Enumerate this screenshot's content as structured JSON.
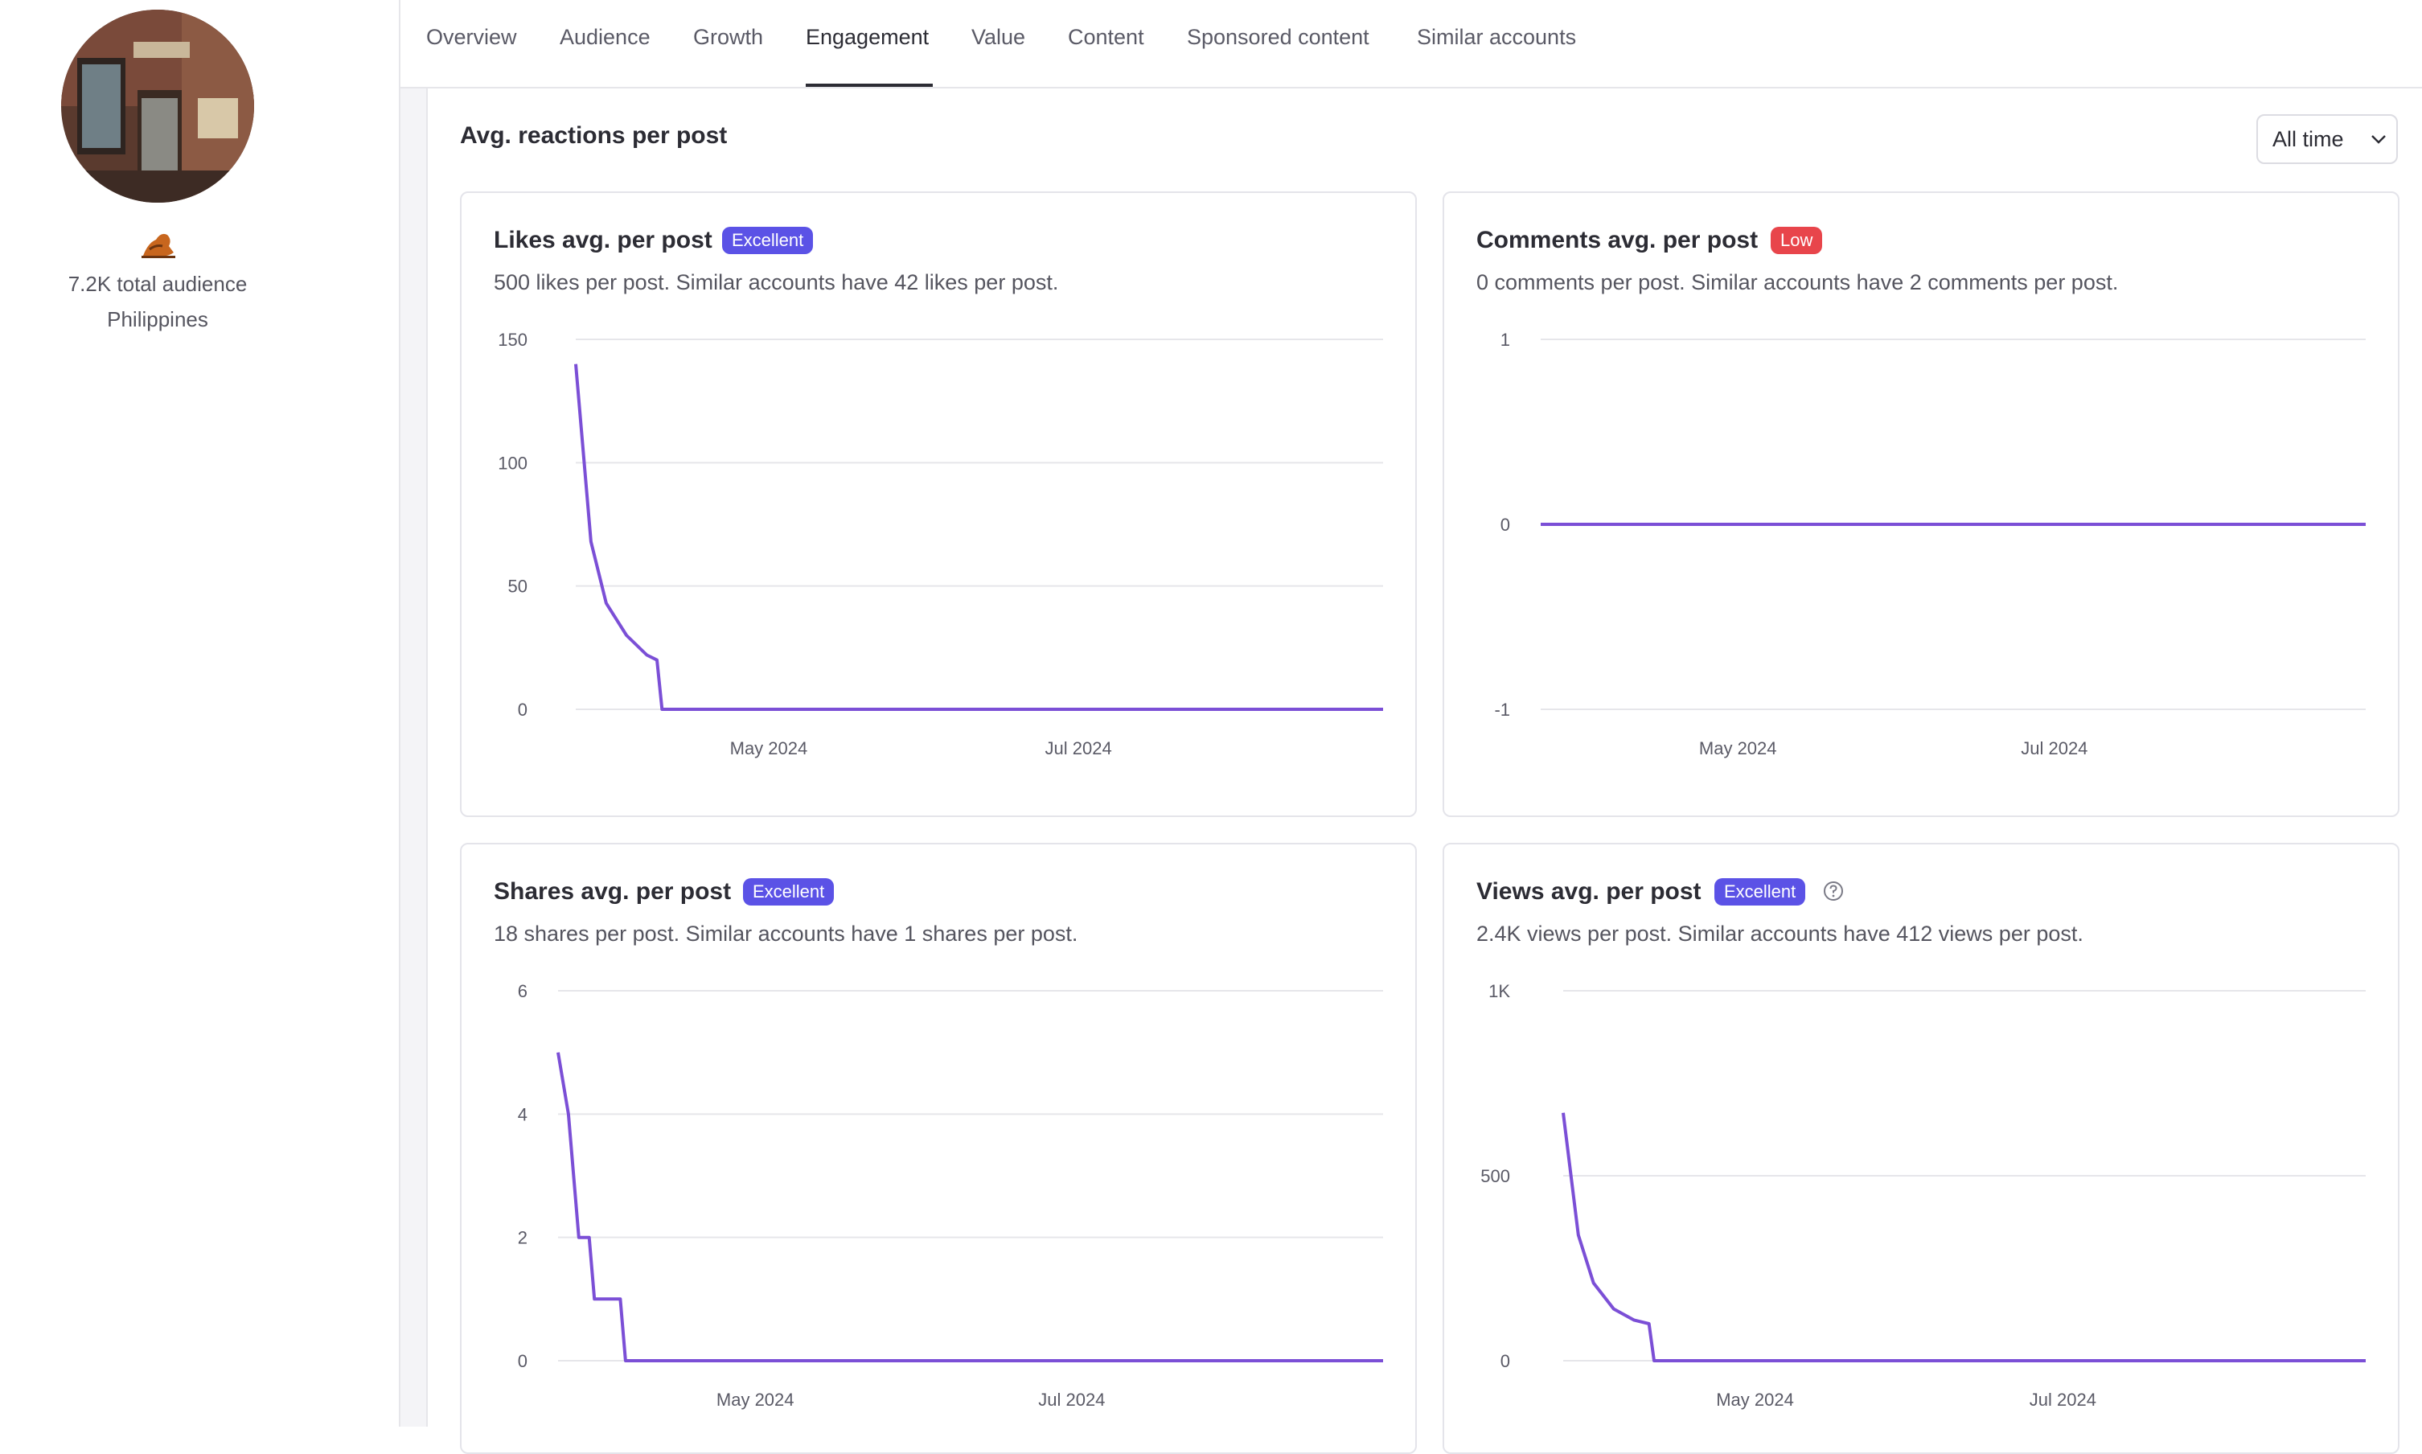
{
  "profile": {
    "audience": "7.2K total audience",
    "location": "Philippines",
    "platform_icon": "hand-icon"
  },
  "tabs": [
    "Overview",
    "Audience",
    "Growth",
    "Engagement",
    "Value",
    "Content",
    "Sponsored content",
    "Similar accounts"
  ],
  "active_tab": "Engagement",
  "section": {
    "title": "Avg. reactions per post",
    "range_select": "All time"
  },
  "colors": {
    "line": "#7b4fd6",
    "excellent": "#5b52e6",
    "low": "#e8454b",
    "grid": "#e6e6ea"
  },
  "cards": [
    {
      "title": "Likes avg. per post",
      "badge": "Excellent",
      "badge_kind": "excellent",
      "subtitle": "500 likes per post. Similar accounts have 42 likes per post."
    },
    {
      "title": "Comments avg. per post",
      "badge": "Low",
      "badge_kind": "low",
      "subtitle": "0 comments per post. Similar accounts have 2 comments per post."
    },
    {
      "title": "Shares avg. per post",
      "badge": "Excellent",
      "badge_kind": "excellent",
      "subtitle": "18 shares per post. Similar accounts have 1 shares per post."
    },
    {
      "title": "Views avg. per post",
      "badge": "Excellent",
      "badge_kind": "excellent",
      "subtitle": "2.4K views per post. Similar accounts have 412 views per post.",
      "help_icon": "question-circle-icon"
    }
  ],
  "chart_data": [
    {
      "type": "line",
      "title": "Likes avg. per post",
      "x": [
        "2024-03-24",
        "2024-03-27",
        "2024-03-30",
        "2024-04-03",
        "2024-04-07",
        "2024-04-09",
        "2024-04-10",
        "2024-08-30"
      ],
      "y": [
        140,
        68,
        43,
        30,
        22,
        20,
        0,
        0
      ],
      "yticks": [
        "150",
        "100",
        "50",
        "0"
      ],
      "ylim": [
        0,
        150
      ],
      "xticks": [
        "May 2024",
        "Jul 2024"
      ],
      "xtick_dates": [
        "2024-05-01",
        "2024-07-01"
      ],
      "xlim": [
        "2024-03-24",
        "2024-08-30"
      ],
      "grid": true
    },
    {
      "type": "line",
      "title": "Comments avg. per post",
      "x": [
        "2024-03-24",
        "2024-08-30"
      ],
      "y": [
        0,
        0
      ],
      "yticks": [
        "1",
        "0",
        "-1"
      ],
      "ylim": [
        -1,
        1
      ],
      "xticks": [
        "May 2024",
        "Jul 2024"
      ],
      "xtick_dates": [
        "2024-05-01",
        "2024-07-01"
      ],
      "xlim": [
        "2024-03-24",
        "2024-08-30"
      ],
      "grid": true
    },
    {
      "type": "line",
      "title": "Shares avg. per post",
      "x": [
        "2024-03-24",
        "2024-03-26",
        "2024-03-28",
        "2024-03-30",
        "2024-03-31",
        "2024-04-04",
        "2024-04-05",
        "2024-04-06",
        "2024-08-30"
      ],
      "y": [
        5,
        4,
        2,
        2,
        1,
        1,
        1,
        0,
        0
      ],
      "yticks": [
        "6",
        "4",
        "2",
        "0"
      ],
      "ylim": [
        0,
        6
      ],
      "xticks": [
        "May 2024",
        "Jul 2024"
      ],
      "xtick_dates": [
        "2024-05-01",
        "2024-07-01"
      ],
      "xlim": [
        "2024-03-24",
        "2024-08-30"
      ],
      "grid": true
    },
    {
      "type": "line",
      "title": "Views avg. per post",
      "x": [
        "2024-03-24",
        "2024-03-27",
        "2024-03-30",
        "2024-04-03",
        "2024-04-07",
        "2024-04-10",
        "2024-04-11",
        "2024-08-30"
      ],
      "y": [
        670,
        340,
        210,
        140,
        110,
        100,
        0,
        0
      ],
      "yticks": [
        "1K",
        "500",
        "0"
      ],
      "ylim": [
        0,
        1000
      ],
      "xticks": [
        "May 2024",
        "Jul 2024"
      ],
      "xtick_dates": [
        "2024-05-01",
        "2024-07-01"
      ],
      "xlim": [
        "2024-03-24",
        "2024-08-30"
      ],
      "grid": true
    }
  ]
}
